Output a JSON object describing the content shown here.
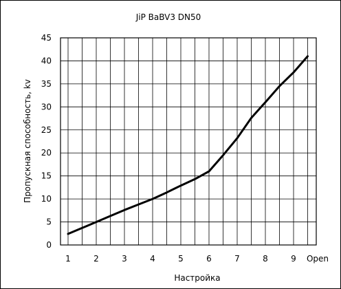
{
  "chart_data": {
    "type": "line",
    "title": "JiP BaBV3 DN50",
    "xlabel": "Настройка",
    "ylabel": "Пропускная способность, kv",
    "x_ticks": [
      "1",
      "2",
      "3",
      "4",
      "5",
      "6",
      "7",
      "8",
      "9",
      "Open"
    ],
    "ylim": [
      0,
      45
    ],
    "y_ticks": [
      0,
      5,
      10,
      15,
      20,
      25,
      30,
      35,
      40,
      45
    ],
    "grid": true,
    "series": [
      {
        "color": "#000000",
        "x": [
          1,
          1.5,
          2,
          2.5,
          3,
          3.5,
          4,
          4.5,
          5,
          5.5,
          6,
          6.5,
          7,
          7.5,
          8,
          8.5,
          9,
          9.5
        ],
        "y": [
          2.4,
          3.7,
          5.0,
          6.3,
          7.6,
          8.8,
          10.0,
          11.4,
          12.9,
          14.3,
          16.0,
          19.5,
          23.2,
          27.6,
          31.0,
          34.5,
          37.5,
          41.0
        ]
      }
    ]
  }
}
